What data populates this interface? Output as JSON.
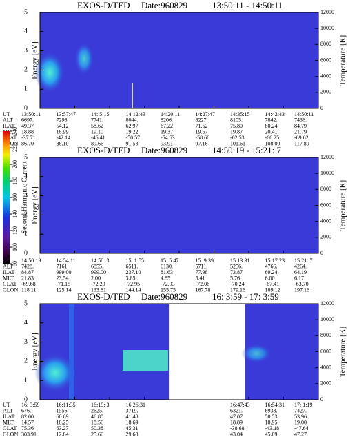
{
  "colorbar": {
    "label": "Second Harmonic Current",
    "ticks": [
      80,
      100,
      120,
      140,
      160,
      180,
      200,
      220,
      240
    ],
    "lim": [
      80,
      240
    ]
  },
  "chart_data": [
    {
      "type": "spectrogram",
      "title": "EXOS-D/TED",
      "date": "Date:960829",
      "time_range": "13:50:11 - 14:50:11",
      "ylabel": "Energy [eV]",
      "ylim": [
        0,
        5
      ],
      "yticks": [
        0,
        1,
        2,
        3,
        4,
        5
      ],
      "y2label": "Temperature [K]",
      "y2lim": [
        0,
        12000
      ],
      "y2ticks": [
        0,
        2000,
        4000,
        6000,
        8000,
        10000,
        12000
      ],
      "table": {
        "labels": [
          "UT",
          "ALT",
          "ILAT",
          "MLT",
          "GLAT",
          "GLON"
        ],
        "rows": [
          [
            "13:50:11",
            "13:57:47",
            "14: 5:15",
            "14:12:43",
            "14:20:11",
            "14:27:47",
            "14:35:15",
            "14:42:43",
            "14:50:11"
          ],
          [
            "6697.",
            "7296.",
            "7741.",
            "8044.",
            "8206.",
            "8227.",
            "8105.",
            "7842.",
            "7436."
          ],
          [
            "49.37",
            "54.12",
            "58.62",
            "62.97",
            "67.22",
            "71.52",
            "75.80",
            "80.24",
            "84.79"
          ],
          [
            "18.88",
            "18.99",
            "19.10",
            "19.22",
            "19.37",
            "19.57",
            "19.87",
            "20.41",
            "21.79"
          ],
          [
            "-37.71",
            "-42.14",
            "-46.41",
            "-50.57",
            "-54.63",
            "-58.66",
            "-62.53",
            "-66.25",
            "-69.62"
          ],
          [
            "86.70",
            "88.10",
            "89.66",
            "91.53",
            "93.91",
            "97.16",
            "101.61",
            "108.09",
            "117.89"
          ]
        ]
      }
    },
    {
      "type": "spectrogram",
      "title": "EXOS-D/TED",
      "date": "Date:960829",
      "time_range": "14:50:19 - 15:21: 7",
      "ylabel": "Energy [eV]",
      "ylim": [
        0,
        5
      ],
      "yticks": [
        0,
        1,
        2,
        3,
        4,
        5
      ],
      "y2label": "Temperature [K]",
      "y2lim": [
        0,
        12000
      ],
      "y2ticks": [
        0,
        2000,
        4000,
        6000,
        8000,
        10000,
        12000
      ],
      "table": {
        "labels": [
          "UT",
          "ALT",
          "ILAT",
          "MLT",
          "GLAT",
          "GLON"
        ],
        "rows": [
          [
            "14:50:19",
            "14:54:11",
            "14:58: 3",
            "15: 1:55",
            "15: 5:47",
            "15: 9:39",
            "15:13:31",
            "15:17:23",
            "15:21: 7"
          ],
          [
            "7428.",
            "7161.",
            "6855.",
            "6511.",
            "6130.",
            "5711.",
            "5256.",
            "4766.",
            "4264."
          ],
          [
            "84.87",
            "999.00",
            "999.00",
            "237.10",
            "81.63",
            "77.98",
            "73.87",
            "69.24",
            "64.19"
          ],
          [
            "21.83",
            "23.54",
            "2.00",
            "3.85",
            "4.85",
            "5.41",
            "5.76",
            "6.00",
            "6.17"
          ],
          [
            "-69.68",
            "-71.15",
            "-72.29",
            "-72.95",
            "-72.93",
            "-72.06",
            "-70.24",
            "-67.41",
            "-63.70"
          ],
          [
            "118.11",
            "125.14",
            "133.81",
            "144.14",
            "155.75",
            "167.78",
            "179.16",
            "189.12",
            "197.16"
          ]
        ]
      }
    },
    {
      "type": "spectrogram",
      "title": "EXOS-D/TED",
      "date": "Date:960829",
      "time_range": "16: 3:59 - 17: 3:59",
      "ylabel": "Energy [eV]",
      "ylim": [
        0,
        5
      ],
      "yticks": [
        0,
        1,
        2,
        3,
        4,
        5
      ],
      "y2label": "Temperature [K]",
      "y2lim": [
        0,
        12000
      ],
      "y2ticks": [
        0,
        2000,
        4000,
        6000,
        8000,
        10000,
        12000
      ],
      "table": {
        "labels": [
          "UT",
          "ALT",
          "ILAT",
          "MLT",
          "GLAT",
          "GLON"
        ],
        "rows": [
          [
            "16: 3:59",
            "16:11:35",
            "16:19: 3",
            "16:26:31",
            null,
            null,
            "16:47:43",
            "16:54:31",
            "17: 1:19"
          ],
          [
            "676.",
            "1556.",
            "2625.",
            "3719.",
            null,
            null,
            "6321.",
            "6933.",
            "7427."
          ],
          [
            "82.00",
            "60.69",
            "46.80",
            "41.48",
            null,
            null,
            "47.07",
            "50.53",
            "53.96"
          ],
          [
            "14.57",
            "18.25",
            "18.56",
            "18.69",
            null,
            null,
            "18.89",
            "18.95",
            "19.00"
          ],
          [
            "75.36",
            "63.27",
            "50.38",
            "45.31",
            null,
            null,
            "-38.68",
            "-43.18",
            "-47.64"
          ],
          [
            "303.91",
            "12.84",
            "25.66",
            "29.68",
            null,
            null,
            "43.04",
            "45.09",
            "47.27"
          ]
        ]
      }
    }
  ]
}
